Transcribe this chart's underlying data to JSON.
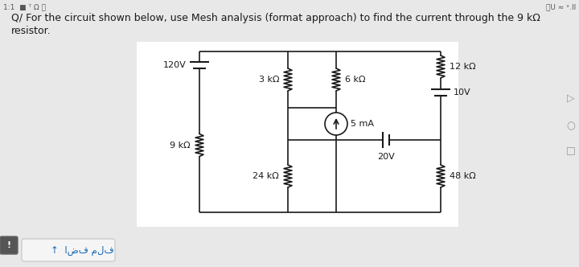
{
  "bg_color": "#e8e8e8",
  "circuit_bg": "#ffffff",
  "text_color": "#1a1a1a",
  "title_line1": "Q/ For the circuit shown below, use Mesh analysis (format approach) to find the current through the 9 kΩ",
  "title_line2": "resistor.",
  "font_size_title": 9.0,
  "status_left": "1:1 ■ ᵀ Ω ⓘ",
  "status_right": "⧉ U ≈ ˣ.ll",
  "label_120V": "120V",
  "label_9k": "9 kΩ",
  "label_3k": "3 kΩ",
  "label_6k": "6 kΩ",
  "label_5mA": "5 mA",
  "label_24k": "24 kΩ",
  "label_20V": "20V",
  "label_12k": "12 kΩ",
  "label_10V": "10V",
  "label_48k": "48 kΩ",
  "upload_label": "↑  اضف ملف",
  "arrow_nav": "▷",
  "circle_nav": "○",
  "square_nav": "□"
}
